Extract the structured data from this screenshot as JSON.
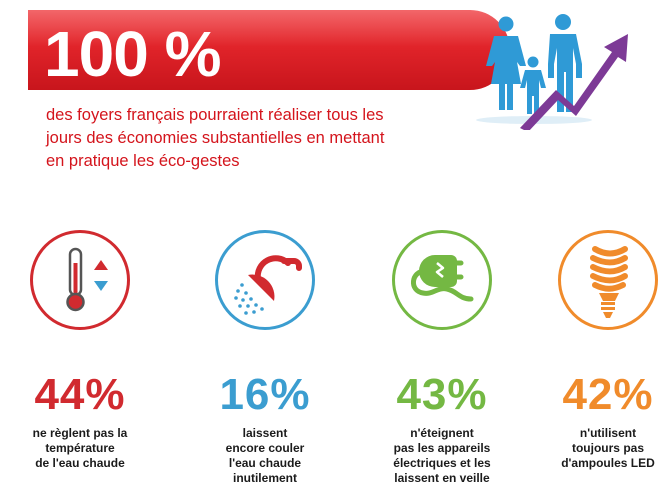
{
  "header": {
    "big_number": "100 %",
    "subtitle_lines": [
      "des foyers français pourraient réaliser tous les",
      "jours des économies substantielles en mettant",
      "en pratique les éco-gestes"
    ]
  },
  "colors": {
    "brand_red": "#e1242a",
    "red": "#d12a2f",
    "blue": "#3b9dd0",
    "green": "#74b843",
    "orange": "#f08b2b",
    "purple": "#7d3a96",
    "people_blue": "#2f9ad6"
  },
  "stats": [
    {
      "icon": "thermometer-icon",
      "percent": "44%",
      "lines": [
        "ne règlent pas la",
        "température",
        "de l'eau chaude"
      ]
    },
    {
      "icon": "shower-icon",
      "percent": "16%",
      "lines": [
        "laissent",
        "encore couler",
        "l'eau chaude",
        "inutilement"
      ]
    },
    {
      "icon": "plug-icon",
      "percent": "43%",
      "lines": [
        "n'éteignent",
        "pas les appareils",
        "électriques et les",
        "laissent en veille"
      ]
    },
    {
      "icon": "light-bulb-icon",
      "percent": "42%",
      "lines": [
        "n'utilisent",
        "toujours pas",
        "d'ampoules LED"
      ]
    }
  ]
}
